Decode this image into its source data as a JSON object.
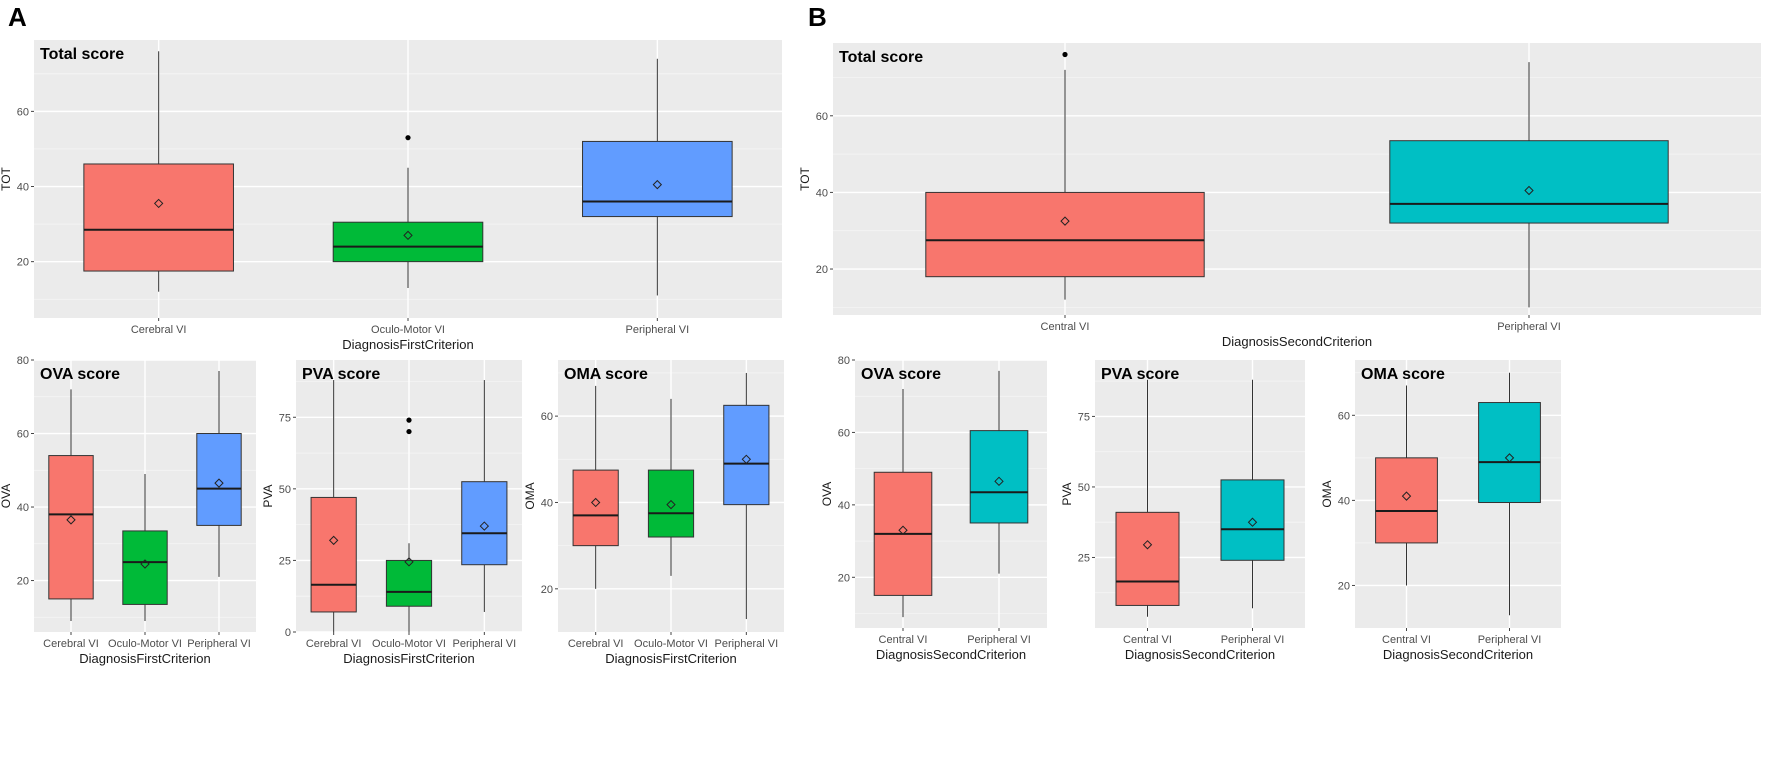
{
  "panels": {
    "a": "A",
    "b": "B"
  },
  "chart_data": [
    {
      "panel": "A",
      "type": "boxplot",
      "title": "Total score",
      "xlabel": "DiagnosisFirstCriterion",
      "ylabel": "TOT",
      "ylim": [
        5,
        79
      ],
      "yticks": [
        20,
        40,
        60
      ],
      "categories": [
        "Cerebral VI",
        "Oculo-Motor VI",
        "Peripheral VI"
      ],
      "colors": [
        "#F8766D",
        "#00BA38",
        "#619CFF"
      ],
      "boxes": [
        {
          "min": 12,
          "q1": 17.5,
          "median": 28.5,
          "q3": 46,
          "max": 76,
          "mean": 35.5,
          "outliers": []
        },
        {
          "min": 13,
          "q1": 20,
          "median": 24,
          "q3": 30.5,
          "max": 45,
          "mean": 27,
          "outliers": [
            53
          ]
        },
        {
          "min": 11,
          "q1": 32,
          "median": 36,
          "q3": 52,
          "max": 74,
          "mean": 40.5,
          "outliers": []
        }
      ]
    },
    {
      "panel": "A",
      "type": "boxplot",
      "title": "OVA score",
      "xlabel": "DiagnosisFirstCriterion",
      "ylabel": "OVA",
      "ylim": [
        6,
        80
      ],
      "yticks": [
        20,
        40,
        60,
        80
      ],
      "categories": [
        "Cerebral VI",
        "Oculo-Motor VI",
        "Peripheral VI"
      ],
      "colors": [
        "#F8766D",
        "#00BA38",
        "#619CFF"
      ],
      "boxes": [
        {
          "min": 9,
          "q1": 15,
          "median": 38,
          "q3": 54,
          "max": 72,
          "mean": 36.5,
          "outliers": []
        },
        {
          "min": 9,
          "q1": 13.5,
          "median": 25,
          "q3": 33.5,
          "max": 49,
          "mean": 24.5,
          "outliers": []
        },
        {
          "min": 21,
          "q1": 35,
          "median": 45,
          "q3": 60,
          "max": 77,
          "mean": 46.5,
          "outliers": []
        }
      ]
    },
    {
      "panel": "A",
      "type": "boxplot",
      "title": "PVA score",
      "xlabel": "DiagnosisFirstCriterion",
      "ylabel": "PVA",
      "ylim": [
        0,
        95
      ],
      "yticks": [
        0,
        25,
        50,
        75
      ],
      "categories": [
        "Cerebral VI",
        "Oculo-Motor VI",
        "Peripheral VI"
      ],
      "colors": [
        "#F8766D",
        "#00BA38",
        "#619CFF"
      ],
      "boxes": [
        {
          "min": 0,
          "q1": 7,
          "median": 16.5,
          "q3": 47,
          "max": 88,
          "mean": 32,
          "outliers": []
        },
        {
          "min": 0,
          "q1": 9,
          "median": 14,
          "q3": 25,
          "max": 31,
          "mean": 24.5,
          "outliers": [
            70,
            74
          ]
        },
        {
          "min": 7,
          "q1": 23.5,
          "median": 34.5,
          "q3": 52.5,
          "max": 88,
          "mean": 37,
          "outliers": []
        }
      ]
    },
    {
      "panel": "A",
      "type": "boxplot",
      "title": "OMA score",
      "xlabel": "DiagnosisFirstCriterion",
      "ylabel": "OMA",
      "ylim": [
        10,
        73
      ],
      "yticks": [
        20,
        40,
        60
      ],
      "categories": [
        "Cerebral VI",
        "Oculo-Motor VI",
        "Peripheral VI"
      ],
      "colors": [
        "#F8766D",
        "#00BA38",
        "#619CFF"
      ],
      "boxes": [
        {
          "min": 20,
          "q1": 30,
          "median": 37,
          "q3": 47.5,
          "max": 67,
          "mean": 40,
          "outliers": []
        },
        {
          "min": 23,
          "q1": 32,
          "median": 37.5,
          "q3": 47.5,
          "max": 64,
          "mean": 39.5,
          "outliers": []
        },
        {
          "min": 13,
          "q1": 39.5,
          "median": 49,
          "q3": 62.5,
          "max": 70,
          "mean": 50,
          "outliers": []
        }
      ]
    },
    {
      "panel": "B",
      "type": "boxplot",
      "title": "Total score",
      "xlabel": "DiagnosisSecondCriterion",
      "ylabel": "TOT",
      "ylim": [
        8,
        79
      ],
      "yticks": [
        20,
        40,
        60
      ],
      "categories": [
        "Central VI",
        "Peripheral VI"
      ],
      "colors": [
        "#F8766D",
        "#00BFC4"
      ],
      "boxes": [
        {
          "min": 12,
          "q1": 18,
          "median": 27.5,
          "q3": 40,
          "max": 72,
          "mean": 32.5,
          "outliers": [
            76
          ]
        },
        {
          "min": 10,
          "q1": 32,
          "median": 37,
          "q3": 53.5,
          "max": 74,
          "mean": 40.5,
          "outliers": []
        }
      ]
    },
    {
      "panel": "B",
      "type": "boxplot",
      "title": "OVA score",
      "xlabel": "DiagnosisSecondCriterion",
      "ylabel": "OVA",
      "ylim": [
        6,
        80
      ],
      "yticks": [
        20,
        40,
        60,
        80
      ],
      "categories": [
        "Central VI",
        "Peripheral VI"
      ],
      "colors": [
        "#F8766D",
        "#00BFC4"
      ],
      "boxes": [
        {
          "min": 9,
          "q1": 15,
          "median": 32,
          "q3": 49,
          "max": 72,
          "mean": 33,
          "outliers": []
        },
        {
          "min": 21,
          "q1": 35,
          "median": 43.5,
          "q3": 60.5,
          "max": 77,
          "mean": 46.5,
          "outliers": []
        }
      ]
    },
    {
      "panel": "B",
      "type": "boxplot",
      "title": "PVA score",
      "xlabel": "DiagnosisSecondCriterion",
      "ylabel": "PVA",
      "ylim": [
        0,
        95
      ],
      "yticks": [
        25,
        50,
        75
      ],
      "categories": [
        "Central VI",
        "Peripheral VI"
      ],
      "colors": [
        "#F8766D",
        "#00BFC4"
      ],
      "boxes": [
        {
          "min": 4,
          "q1": 8,
          "median": 16.5,
          "q3": 41,
          "max": 88,
          "mean": 29.5,
          "outliers": []
        },
        {
          "min": 7,
          "q1": 24,
          "median": 35,
          "q3": 52.5,
          "max": 88,
          "mean": 37.5,
          "outliers": []
        }
      ]
    },
    {
      "panel": "B",
      "type": "boxplot",
      "title": "OMA score",
      "xlabel": "DiagnosisSecondCriterion",
      "ylabel": "OMA",
      "ylim": [
        10,
        73
      ],
      "yticks": [
        20,
        40,
        60
      ],
      "categories": [
        "Central VI",
        "Peripheral VI"
      ],
      "colors": [
        "#F8766D",
        "#00BFC4"
      ],
      "boxes": [
        {
          "min": 20,
          "q1": 30,
          "median": 37.5,
          "q3": 50,
          "max": 67,
          "mean": 41,
          "outliers": []
        },
        {
          "min": 13,
          "q1": 39.5,
          "median": 49,
          "q3": 63,
          "max": 70,
          "mean": 50,
          "outliers": []
        }
      ]
    }
  ]
}
